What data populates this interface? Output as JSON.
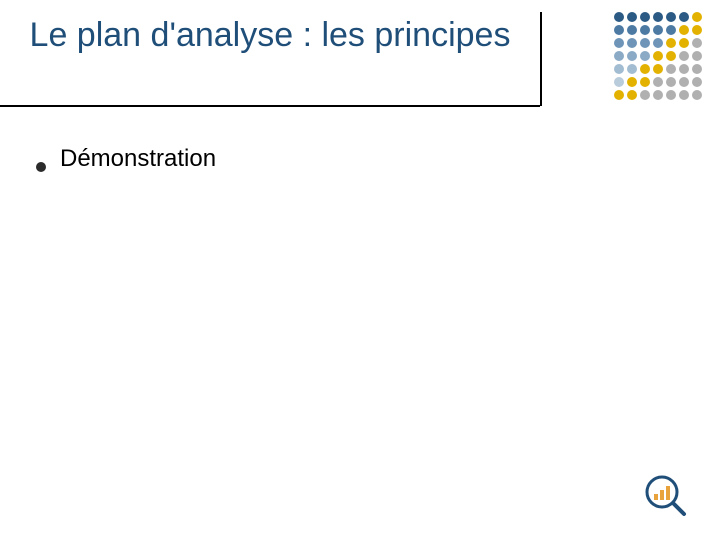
{
  "slide": {
    "title": "Le plan d'analyse : les principes",
    "title_color": "#1f4e79",
    "title_fontsize": 34,
    "underline_color": "#000000",
    "bullets": [
      {
        "text": "Démonstration"
      }
    ],
    "bullet_marker_color": "#2b2b2b",
    "bullet_fontsize": 24
  },
  "decor": {
    "dot_grid": {
      "rows": 7,
      "cols": 7,
      "dot_size": 10,
      "gap": 3,
      "colors": [
        [
          "#2b5a84",
          "#2b5a84",
          "#2b5a84",
          "#2b5a84",
          "#2b5a84",
          "#2b5a84",
          "#e3b200"
        ],
        [
          "#4d7aa3",
          "#4d7aa3",
          "#4d7aa3",
          "#4d7aa3",
          "#4d7aa3",
          "#e3b200",
          "#e3b200"
        ],
        [
          "#6e95b8",
          "#6e95b8",
          "#6e95b8",
          "#6e95b8",
          "#e3b200",
          "#e3b200",
          "#b0b0b0"
        ],
        [
          "#8aaac6",
          "#8aaac6",
          "#8aaac6",
          "#e3b200",
          "#e3b200",
          "#b0b0b0",
          "#b0b0b0"
        ],
        [
          "#a2bcd2",
          "#a2bcd2",
          "#e3b200",
          "#e3b200",
          "#b0b0b0",
          "#b0b0b0",
          "#b0b0b0"
        ],
        [
          "#b8ccdc",
          "#e3b200",
          "#e3b200",
          "#b0b0b0",
          "#b0b0b0",
          "#b0b0b0",
          "#b0b0b0"
        ],
        [
          "#e3b200",
          "#e3b200",
          "#b0b0b0",
          "#b0b0b0",
          "#b0b0b0",
          "#b0b0b0",
          "#b0b0b0"
        ]
      ]
    },
    "footer_logo": {
      "ring_color": "#1f4e79",
      "bar_colors": [
        "#e8a33d",
        "#e8a33d",
        "#e8a33d"
      ],
      "handle_color": "#1f4e79"
    }
  },
  "background_color": "#ffffff"
}
